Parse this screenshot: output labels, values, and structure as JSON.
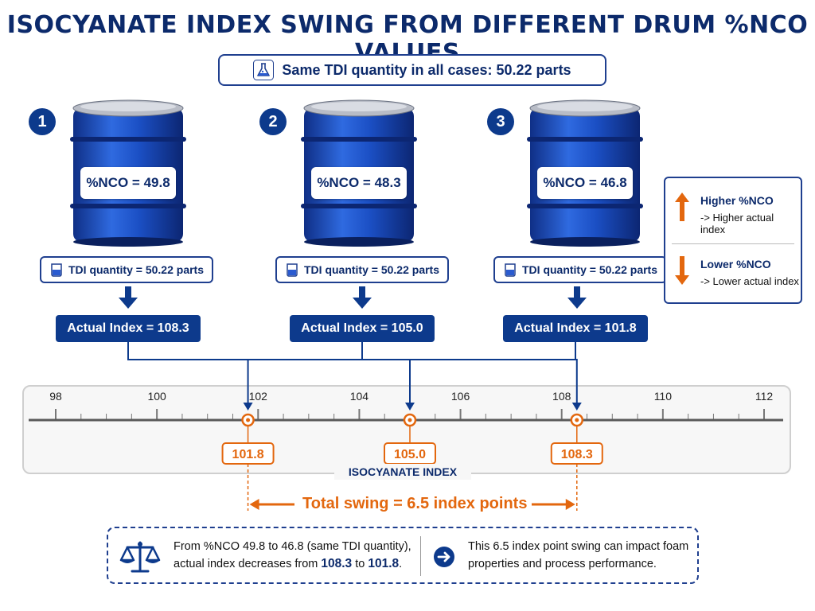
{
  "title": "ISOCYANATE INDEX SWING FROM DIFFERENT DRUM %NCO VALUES",
  "subtitle": "Same TDI quantity in all cases: 50.22 parts",
  "drums": [
    {
      "step": "1",
      "nco_label": "%NCO = 49.8",
      "qty_label": "TDI quantity = 50.22 parts",
      "index_label": "Actual Index = 108.3"
    },
    {
      "step": "2",
      "nco_label": "%NCO = 48.3",
      "qty_label": "TDI quantity = 50.22 parts",
      "index_label": "Actual Index = 105.0"
    },
    {
      "step": "3",
      "nco_label": "%NCO = 46.8",
      "qty_label": "TDI quantity = 50.22 parts",
      "index_label": "Actual Index = 101.8"
    }
  ],
  "legend": {
    "higher_head": "Higher %NCO",
    "higher_sub": "-> Higher actual index",
    "lower_head": "Lower %NCO",
    "lower_sub": "-> Lower actual index"
  },
  "scale": {
    "axis_label": "ISOCYANATE INDEX",
    "min": 98,
    "max": 112,
    "major_ticks": [
      98,
      100,
      102,
      104,
      106,
      108,
      110,
      112
    ],
    "points": [
      {
        "value": 101.8,
        "label": "101.8"
      },
      {
        "value": 105.0,
        "label": "105.0"
      },
      {
        "value": 108.3,
        "label": "108.3"
      }
    ]
  },
  "swing_label": "Total swing = 6.5 index points",
  "bottom": {
    "text1_a": "From %NCO 49.8 to 46.8 (same TDI quantity), actual index decreases from ",
    "text1_hi": "108.3",
    "text1_mid": " to ",
    "text1_lo": "101.8",
    "text1_end": ".",
    "text2": "This 6.5 index point swing can impact foam properties and process performance."
  },
  "colors": {
    "navy": "#0d3a8c",
    "orange": "#e3670e",
    "drum_blue": "#1b4fc4"
  }
}
